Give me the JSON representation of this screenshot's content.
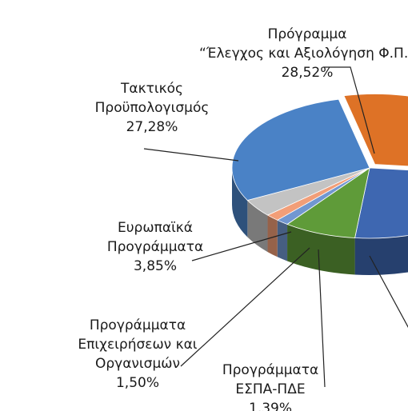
{
  "chart_data": {
    "type": "pie",
    "style": "3d-exploded",
    "slices": [
      {
        "key": "programma",
        "lines": [
          "Πρόγραμμα",
          "“Έλεγχος και Αξιολόγηση Φ.Π.”"
        ],
        "pct": "28,52%",
        "value": 28.52,
        "color": "#de7226"
      },
      {
        "key": "other_blue",
        "lines": [],
        "pct": "",
        "value": 23.5,
        "color": "#3e67b1"
      },
      {
        "key": "pde_green",
        "lines": [],
        "pct": "",
        "value": 8.0,
        "color": "#5f9b39"
      },
      {
        "key": "espa",
        "lines": [
          "Προγράμματα",
          "ΕΣΠΑ-ΠΔΕ"
        ],
        "pct": "1,39%",
        "value": 1.39,
        "color": "#7197d1"
      },
      {
        "key": "epixeiriseis",
        "lines": [
          "Προγράμματα",
          "Επιχειρήσεων και",
          "Οργανισμών"
        ],
        "pct": "1,50%",
        "value": 1.5,
        "color": "#f29e78"
      },
      {
        "key": "evropaika",
        "lines": [
          "Ευρωπαϊκά",
          "Προγράμματα"
        ],
        "pct": "3,85%",
        "value": 3.85,
        "color": "#c3c3c3"
      },
      {
        "key": "taktikos",
        "lines": [
          "Τακτικός",
          "Προϋπολογισμός"
        ],
        "pct": "27,28%",
        "value": 27.28,
        "color": "#4a82c6"
      }
    ]
  }
}
